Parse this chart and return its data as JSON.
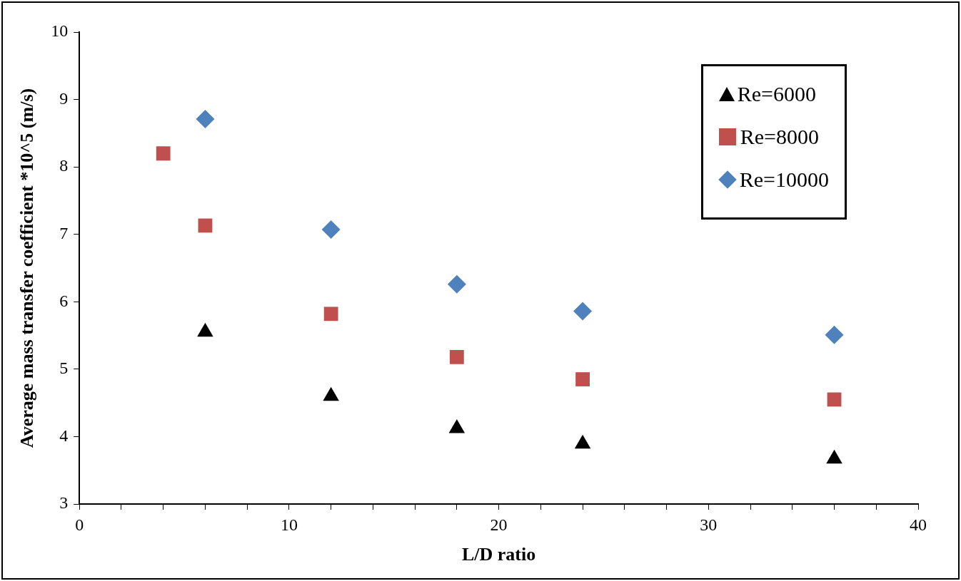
{
  "chart_data": {
    "type": "scatter",
    "xlabel": "L/D ratio",
    "ylabel": "Average mass transfer coefficient *10^5 (m/s)",
    "xlim": [
      0,
      40
    ],
    "ylim": [
      3,
      10
    ],
    "xticks": [
      0,
      {
        "value": 2,
        "label": null
      },
      {
        "value": 4,
        "label": null
      },
      {
        "value": 6,
        "label": null
      },
      {
        "value": 8,
        "label": null
      },
      10,
      {
        "value": 12,
        "label": null
      },
      {
        "value": 14,
        "label": null
      },
      {
        "value": 16,
        "label": null
      },
      {
        "value": 18,
        "label": null
      },
      20,
      {
        "value": 22,
        "label": null
      },
      {
        "value": 24,
        "label": null
      },
      {
        "value": 26,
        "label": null
      },
      {
        "value": 28,
        "label": null
      },
      30,
      {
        "value": 32,
        "label": null
      },
      {
        "value": 34,
        "label": null
      },
      {
        "value": 36,
        "label": null
      },
      {
        "value": 38,
        "label": null
      },
      40
    ],
    "yticks": [
      3,
      4,
      5,
      6,
      7,
      8,
      9,
      10
    ],
    "grid": false,
    "legend": "top right",
    "series": [
      {
        "name": "Re=6000",
        "color": "#000000",
        "marker": "triangle",
        "x": [
          6,
          12,
          18,
          24,
          36
        ],
        "values": [
          5.55,
          4.6,
          4.12,
          3.89,
          3.67
        ]
      },
      {
        "name": "Re=8000",
        "color": "#c0504d",
        "marker": "square",
        "x": [
          4,
          6,
          12,
          18,
          24,
          36
        ],
        "values": [
          8.2,
          7.13,
          5.82,
          5.18,
          4.85,
          4.55
        ]
      },
      {
        "name": "Re=10000",
        "color": "#4f81bd",
        "marker": "diamond",
        "x": [
          6,
          12,
          18,
          24,
          36
        ],
        "values": [
          8.71,
          7.07,
          6.26,
          5.86,
          5.51
        ]
      }
    ]
  }
}
